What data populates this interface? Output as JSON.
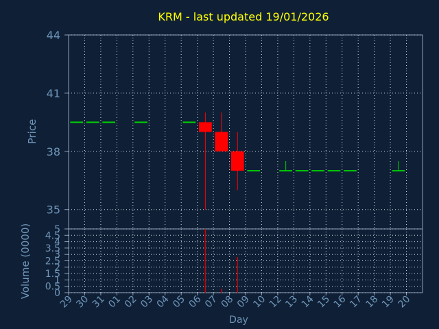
{
  "chart_data": [
    {
      "type": "candlestick",
      "title": "KRM - last updated 19/01/2026",
      "ylabel": "Price",
      "xlabel": "",
      "ylim": [
        34.0,
        44.0
      ],
      "yticks": [
        35,
        38,
        41,
        44
      ],
      "grid": true,
      "categories": [
        "29",
        "30",
        "31",
        "01",
        "02",
        "03",
        "04",
        "05",
        "06",
        "07",
        "08",
        "09",
        "10",
        "12",
        "13",
        "14",
        "15",
        "16",
        "17",
        "18",
        "19",
        "20"
      ],
      "ohlc": [
        {
          "x": "29",
          "open": 39.5,
          "high": 39.5,
          "low": 39.5,
          "close": 39.5
        },
        {
          "x": "30",
          "open": 39.5,
          "high": 39.5,
          "low": 39.5,
          "close": 39.5
        },
        {
          "x": "31",
          "open": 39.5,
          "high": 39.5,
          "low": 39.5,
          "close": 39.5
        },
        {
          "x": "02",
          "open": 39.5,
          "high": 39.5,
          "low": 39.5,
          "close": 39.5
        },
        {
          "x": "05",
          "open": 39.5,
          "high": 39.5,
          "low": 39.5,
          "close": 39.5
        },
        {
          "x": "06",
          "open": 39.5,
          "high": 40.0,
          "low": 35.0,
          "close": 39.0
        },
        {
          "x": "07",
          "open": 39.0,
          "high": 40.0,
          "low": 38.0,
          "close": 38.0
        },
        {
          "x": "08",
          "open": 38.0,
          "high": 39.0,
          "low": 36.0,
          "close": 37.0
        },
        {
          "x": "09",
          "open": 37.0,
          "high": 37.0,
          "low": 37.0,
          "close": 37.0
        },
        {
          "x": "12",
          "open": 37.0,
          "high": 37.5,
          "low": 37.0,
          "close": 37.0
        },
        {
          "x": "13",
          "open": 37.0,
          "high": 37.0,
          "low": 37.0,
          "close": 37.0
        },
        {
          "x": "14",
          "open": 37.0,
          "high": 37.0,
          "low": 37.0,
          "close": 37.0
        },
        {
          "x": "15",
          "open": 37.0,
          "high": 37.0,
          "low": 37.0,
          "close": 37.0
        },
        {
          "x": "16",
          "open": 37.0,
          "high": 37.0,
          "low": 37.0,
          "close": 37.0
        },
        {
          "x": "19",
          "open": 37.0,
          "high": 37.5,
          "low": 37.0,
          "close": 37.0
        }
      ],
      "colors": {
        "flat": "#00d000",
        "down": "#ff0000"
      }
    },
    {
      "type": "bar",
      "ylabel": "Volume (0000)",
      "xlabel": "Day",
      "ylim": [
        0,
        5
      ],
      "yticks": [
        0,
        0.5,
        1,
        1.5,
        2,
        2.5,
        3,
        3.5,
        4,
        4.5,
        5
      ],
      "ytick_labels": [
        "0",
        "0.5",
        "1",
        "1.5",
        "2",
        "2.5",
        "3",
        "3.5",
        "4",
        "4.5",
        "5"
      ],
      "grid": true,
      "categories": [
        "29",
        "30",
        "31",
        "01",
        "02",
        "03",
        "04",
        "05",
        "06",
        "07",
        "08",
        "09",
        "10",
        "12",
        "13",
        "14",
        "15",
        "16",
        "17",
        "18",
        "19",
        "20"
      ],
      "values": [
        {
          "x": "06",
          "value": 5.0
        },
        {
          "x": "07",
          "value": 0.3
        },
        {
          "x": "08",
          "value": 2.8
        }
      ],
      "bar_color": "#d00000"
    }
  ],
  "colors": {
    "background": "#0f2036",
    "title": "#ffff00",
    "text": "#6f95b8",
    "grid": "#cfd8e0",
    "frame": "#8aa0b5"
  }
}
